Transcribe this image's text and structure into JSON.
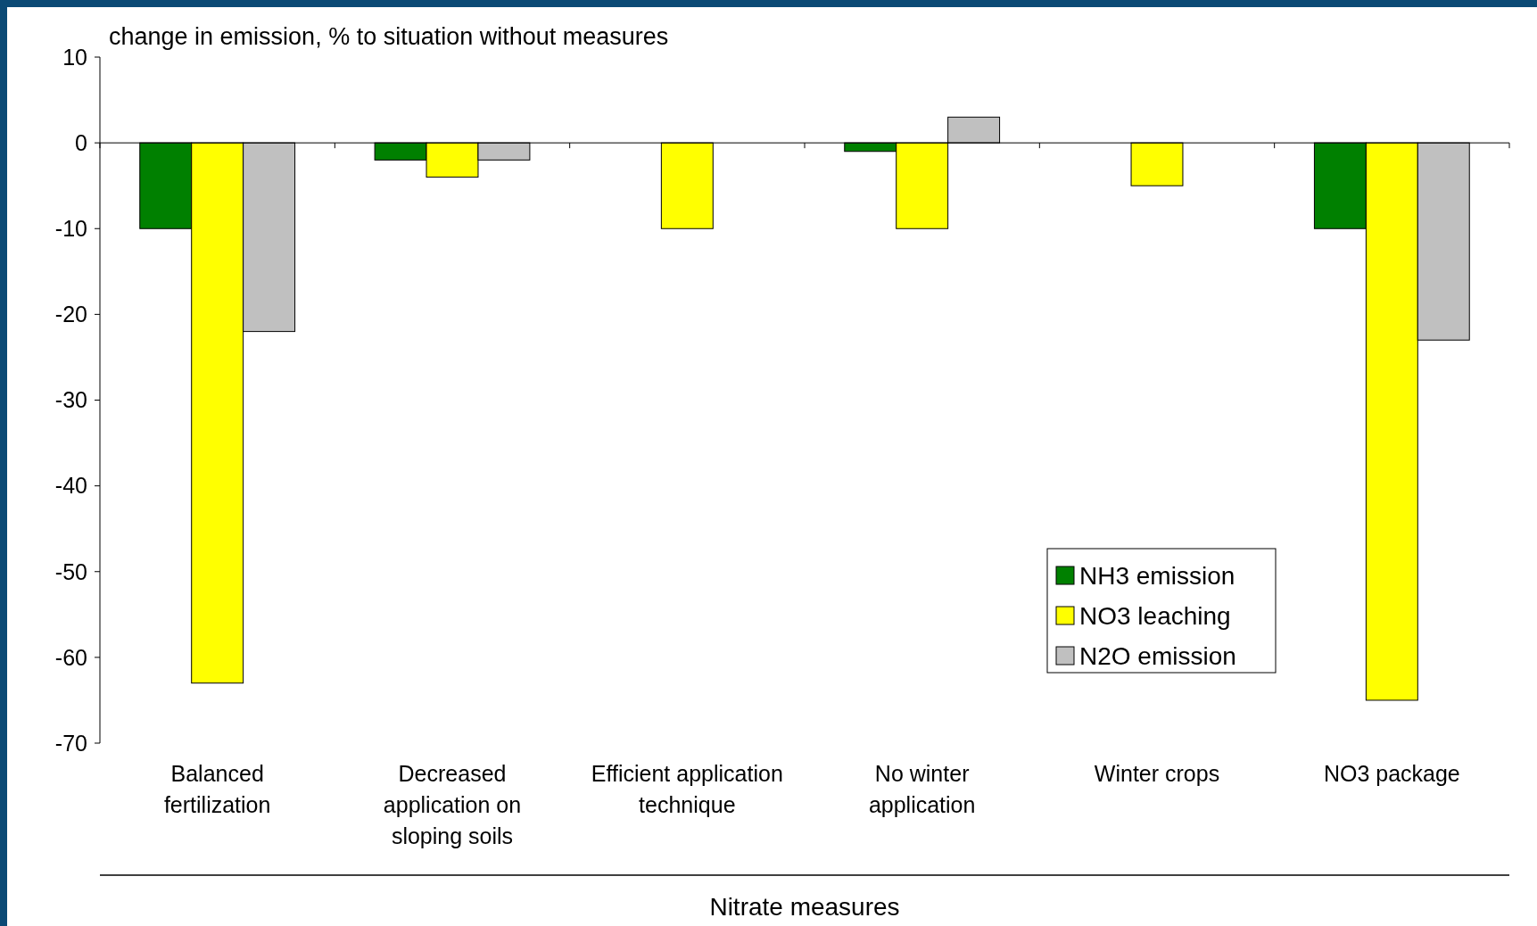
{
  "chart_data": {
    "type": "bar",
    "ylabel": "change in emission, % to situation without measures",
    "xlabel": "Nitrate measures",
    "categories": [
      "Balanced\nfertilization",
      "Decreased\napplication on\nsloping soils",
      "Efficient application\ntechnique",
      "No winter\napplication",
      "Winter crops",
      "NO3 package"
    ],
    "series": [
      {
        "name": "NH3 emission",
        "color": "#008000",
        "values": [
          -10,
          -2,
          0,
          -1,
          0,
          -10
        ]
      },
      {
        "name": "NO3 leaching",
        "color": "#ffff00",
        "values": [
          -63,
          -4,
          -10,
          -10,
          -5,
          -65
        ]
      },
      {
        "name": "N2O emission",
        "color": "#c0c0c0",
        "values": [
          -22,
          -2,
          0,
          3,
          0,
          -23
        ]
      }
    ],
    "ylim": [
      -70,
      10
    ],
    "yticks": [
      10,
      0,
      -10,
      -20,
      -30,
      -40,
      -50,
      -60,
      -70
    ],
    "legend": "bottom right"
  }
}
